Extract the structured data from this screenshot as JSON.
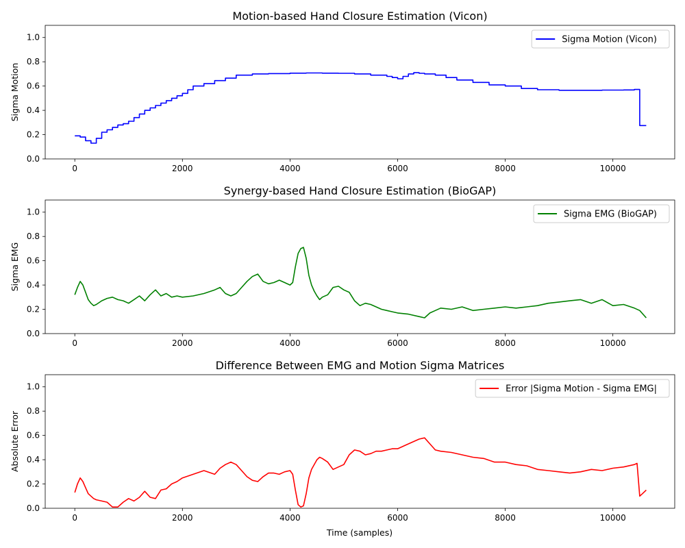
{
  "figure": {
    "xlabel": "Time (samples)"
  },
  "chart_data": [
    {
      "type": "line",
      "title": "Motion-based Hand Closure Estimation (Vicon)",
      "xlabel": "",
      "ylabel": "Sigma Motion",
      "xlim": [
        -550,
        11150
      ],
      "ylim": [
        0,
        1.1
      ],
      "xticks": [
        0,
        2000,
        4000,
        6000,
        8000,
        10000
      ],
      "yticks": [
        0.0,
        0.2,
        0.4,
        0.6,
        0.8,
        1.0
      ],
      "grid": false,
      "legend": "top-right",
      "series": [
        {
          "name": "Sigma Motion (Vicon)",
          "color": "#0000ff",
          "step": true,
          "x": [
            0,
            100,
            200,
            300,
            400,
            500,
            600,
            700,
            800,
            900,
            1000,
            1100,
            1200,
            1300,
            1400,
            1500,
            1600,
            1700,
            1800,
            1900,
            2000,
            2100,
            2200,
            2400,
            2600,
            2800,
            3000,
            3300,
            3600,
            4000,
            4300,
            4600,
            4900,
            5200,
            5500,
            5800,
            5900,
            6000,
            6100,
            6200,
            6300,
            6400,
            6500,
            6700,
            6900,
            7100,
            7400,
            7700,
            8000,
            8300,
            8600,
            9000,
            9400,
            9800,
            10200,
            10400,
            10500,
            10620
          ],
          "y": [
            0.19,
            0.18,
            0.15,
            0.13,
            0.17,
            0.22,
            0.24,
            0.26,
            0.28,
            0.29,
            0.31,
            0.34,
            0.37,
            0.4,
            0.42,
            0.44,
            0.46,
            0.48,
            0.5,
            0.52,
            0.54,
            0.57,
            0.6,
            0.62,
            0.645,
            0.665,
            0.69,
            0.7,
            0.703,
            0.706,
            0.708,
            0.706,
            0.705,
            0.7,
            0.69,
            0.68,
            0.67,
            0.66,
            0.68,
            0.7,
            0.71,
            0.705,
            0.7,
            0.69,
            0.67,
            0.65,
            0.63,
            0.61,
            0.6,
            0.58,
            0.57,
            0.565,
            0.565,
            0.567,
            0.568,
            0.572,
            0.275,
            0.275
          ]
        }
      ]
    },
    {
      "type": "line",
      "title": "Synergy-based Hand Closure Estimation (BioGAP)",
      "xlabel": "",
      "ylabel": "Sigma EMG",
      "xlim": [
        -550,
        11150
      ],
      "ylim": [
        0,
        1.1
      ],
      "xticks": [
        0,
        2000,
        4000,
        6000,
        8000,
        10000
      ],
      "yticks": [
        0.0,
        0.2,
        0.4,
        0.6,
        0.8,
        1.0
      ],
      "grid": false,
      "legend": "top-right",
      "series": [
        {
          "name": "Sigma EMG (BioGAP)",
          "color": "#008000",
          "step": false,
          "x": [
            0,
            50,
            100,
            150,
            200,
            250,
            300,
            350,
            400,
            500,
            600,
            700,
            800,
            900,
            1000,
            1100,
            1200,
            1300,
            1400,
            1500,
            1600,
            1700,
            1800,
            1900,
            2000,
            2200,
            2400,
            2600,
            2700,
            2800,
            2900,
            3000,
            3100,
            3200,
            3300,
            3400,
            3500,
            3600,
            3700,
            3800,
            3900,
            4000,
            4050,
            4100,
            4150,
            4200,
            4250,
            4300,
            4350,
            4400,
            4450,
            4500,
            4550,
            4600,
            4700,
            4800,
            4900,
            5000,
            5100,
            5200,
            5300,
            5400,
            5500,
            5600,
            5700,
            5800,
            5900,
            6000,
            6200,
            6400,
            6500,
            6600,
            6700,
            6800,
            7000,
            7200,
            7400,
            7600,
            7800,
            8000,
            8200,
            8400,
            8600,
            8800,
            9000,
            9200,
            9400,
            9600,
            9800,
            10000,
            10200,
            10400,
            10500,
            10620
          ],
          "y": [
            0.32,
            0.38,
            0.43,
            0.4,
            0.34,
            0.28,
            0.25,
            0.23,
            0.24,
            0.27,
            0.29,
            0.3,
            0.28,
            0.27,
            0.25,
            0.28,
            0.31,
            0.27,
            0.32,
            0.36,
            0.31,
            0.33,
            0.3,
            0.31,
            0.3,
            0.31,
            0.33,
            0.36,
            0.38,
            0.33,
            0.31,
            0.33,
            0.38,
            0.43,
            0.47,
            0.49,
            0.43,
            0.41,
            0.42,
            0.44,
            0.42,
            0.4,
            0.42,
            0.55,
            0.66,
            0.7,
            0.71,
            0.62,
            0.48,
            0.4,
            0.35,
            0.31,
            0.28,
            0.3,
            0.32,
            0.38,
            0.39,
            0.36,
            0.34,
            0.27,
            0.23,
            0.25,
            0.24,
            0.22,
            0.2,
            0.19,
            0.18,
            0.17,
            0.16,
            0.14,
            0.13,
            0.17,
            0.19,
            0.21,
            0.2,
            0.22,
            0.19,
            0.2,
            0.21,
            0.22,
            0.21,
            0.22,
            0.23,
            0.25,
            0.26,
            0.27,
            0.28,
            0.25,
            0.28,
            0.23,
            0.24,
            0.21,
            0.19,
            0.13
          ]
        }
      ]
    },
    {
      "type": "line",
      "title": "Difference Between EMG and Motion Sigma Matrices",
      "xlabel": "Time (samples)",
      "ylabel": "Absolute Error",
      "xlim": [
        -550,
        11150
      ],
      "ylim": [
        0,
        1.1
      ],
      "xticks": [
        0,
        2000,
        4000,
        6000,
        8000,
        10000
      ],
      "yticks": [
        0.0,
        0.2,
        0.4,
        0.6,
        0.8,
        1.0
      ],
      "grid": false,
      "legend": "top-right",
      "series": [
        {
          "name": "Error |Sigma Motion - Sigma EMG|",
          "color": "#ff0000",
          "step": false,
          "x": [
            0,
            50,
            100,
            150,
            200,
            250,
            300,
            350,
            400,
            500,
            600,
            700,
            800,
            900,
            1000,
            1100,
            1200,
            1300,
            1400,
            1500,
            1600,
            1700,
            1800,
            1900,
            2000,
            2200,
            2400,
            2600,
            2700,
            2800,
            2900,
            3000,
            3100,
            3200,
            3300,
            3400,
            3500,
            3600,
            3700,
            3800,
            3900,
            4000,
            4050,
            4100,
            4150,
            4200,
            4250,
            4300,
            4350,
            4400,
            4450,
            4500,
            4550,
            4600,
            4700,
            4800,
            4900,
            5000,
            5100,
            5200,
            5300,
            5400,
            5500,
            5600,
            5700,
            5800,
            5900,
            6000,
            6200,
            6400,
            6500,
            6600,
            6700,
            6800,
            7000,
            7200,
            7400,
            7600,
            7800,
            8000,
            8200,
            8400,
            8600,
            8800,
            9000,
            9200,
            9400,
            9600,
            9800,
            10000,
            10200,
            10400,
            10450,
            10500,
            10550,
            10620
          ],
          "y": [
            0.13,
            0.2,
            0.25,
            0.22,
            0.17,
            0.12,
            0.1,
            0.08,
            0.07,
            0.06,
            0.05,
            0.01,
            0.01,
            0.05,
            0.08,
            0.06,
            0.09,
            0.14,
            0.09,
            0.08,
            0.15,
            0.16,
            0.2,
            0.22,
            0.25,
            0.28,
            0.31,
            0.28,
            0.33,
            0.36,
            0.38,
            0.36,
            0.31,
            0.26,
            0.23,
            0.22,
            0.26,
            0.29,
            0.29,
            0.28,
            0.3,
            0.31,
            0.28,
            0.15,
            0.03,
            0.01,
            0.02,
            0.12,
            0.25,
            0.32,
            0.36,
            0.4,
            0.42,
            0.41,
            0.38,
            0.32,
            0.34,
            0.36,
            0.44,
            0.48,
            0.47,
            0.44,
            0.45,
            0.47,
            0.47,
            0.48,
            0.49,
            0.49,
            0.53,
            0.57,
            0.58,
            0.53,
            0.48,
            0.47,
            0.46,
            0.44,
            0.42,
            0.41,
            0.38,
            0.38,
            0.36,
            0.35,
            0.32,
            0.31,
            0.3,
            0.29,
            0.3,
            0.32,
            0.31,
            0.33,
            0.34,
            0.36,
            0.37,
            0.1,
            0.12,
            0.15
          ]
        }
      ]
    }
  ]
}
